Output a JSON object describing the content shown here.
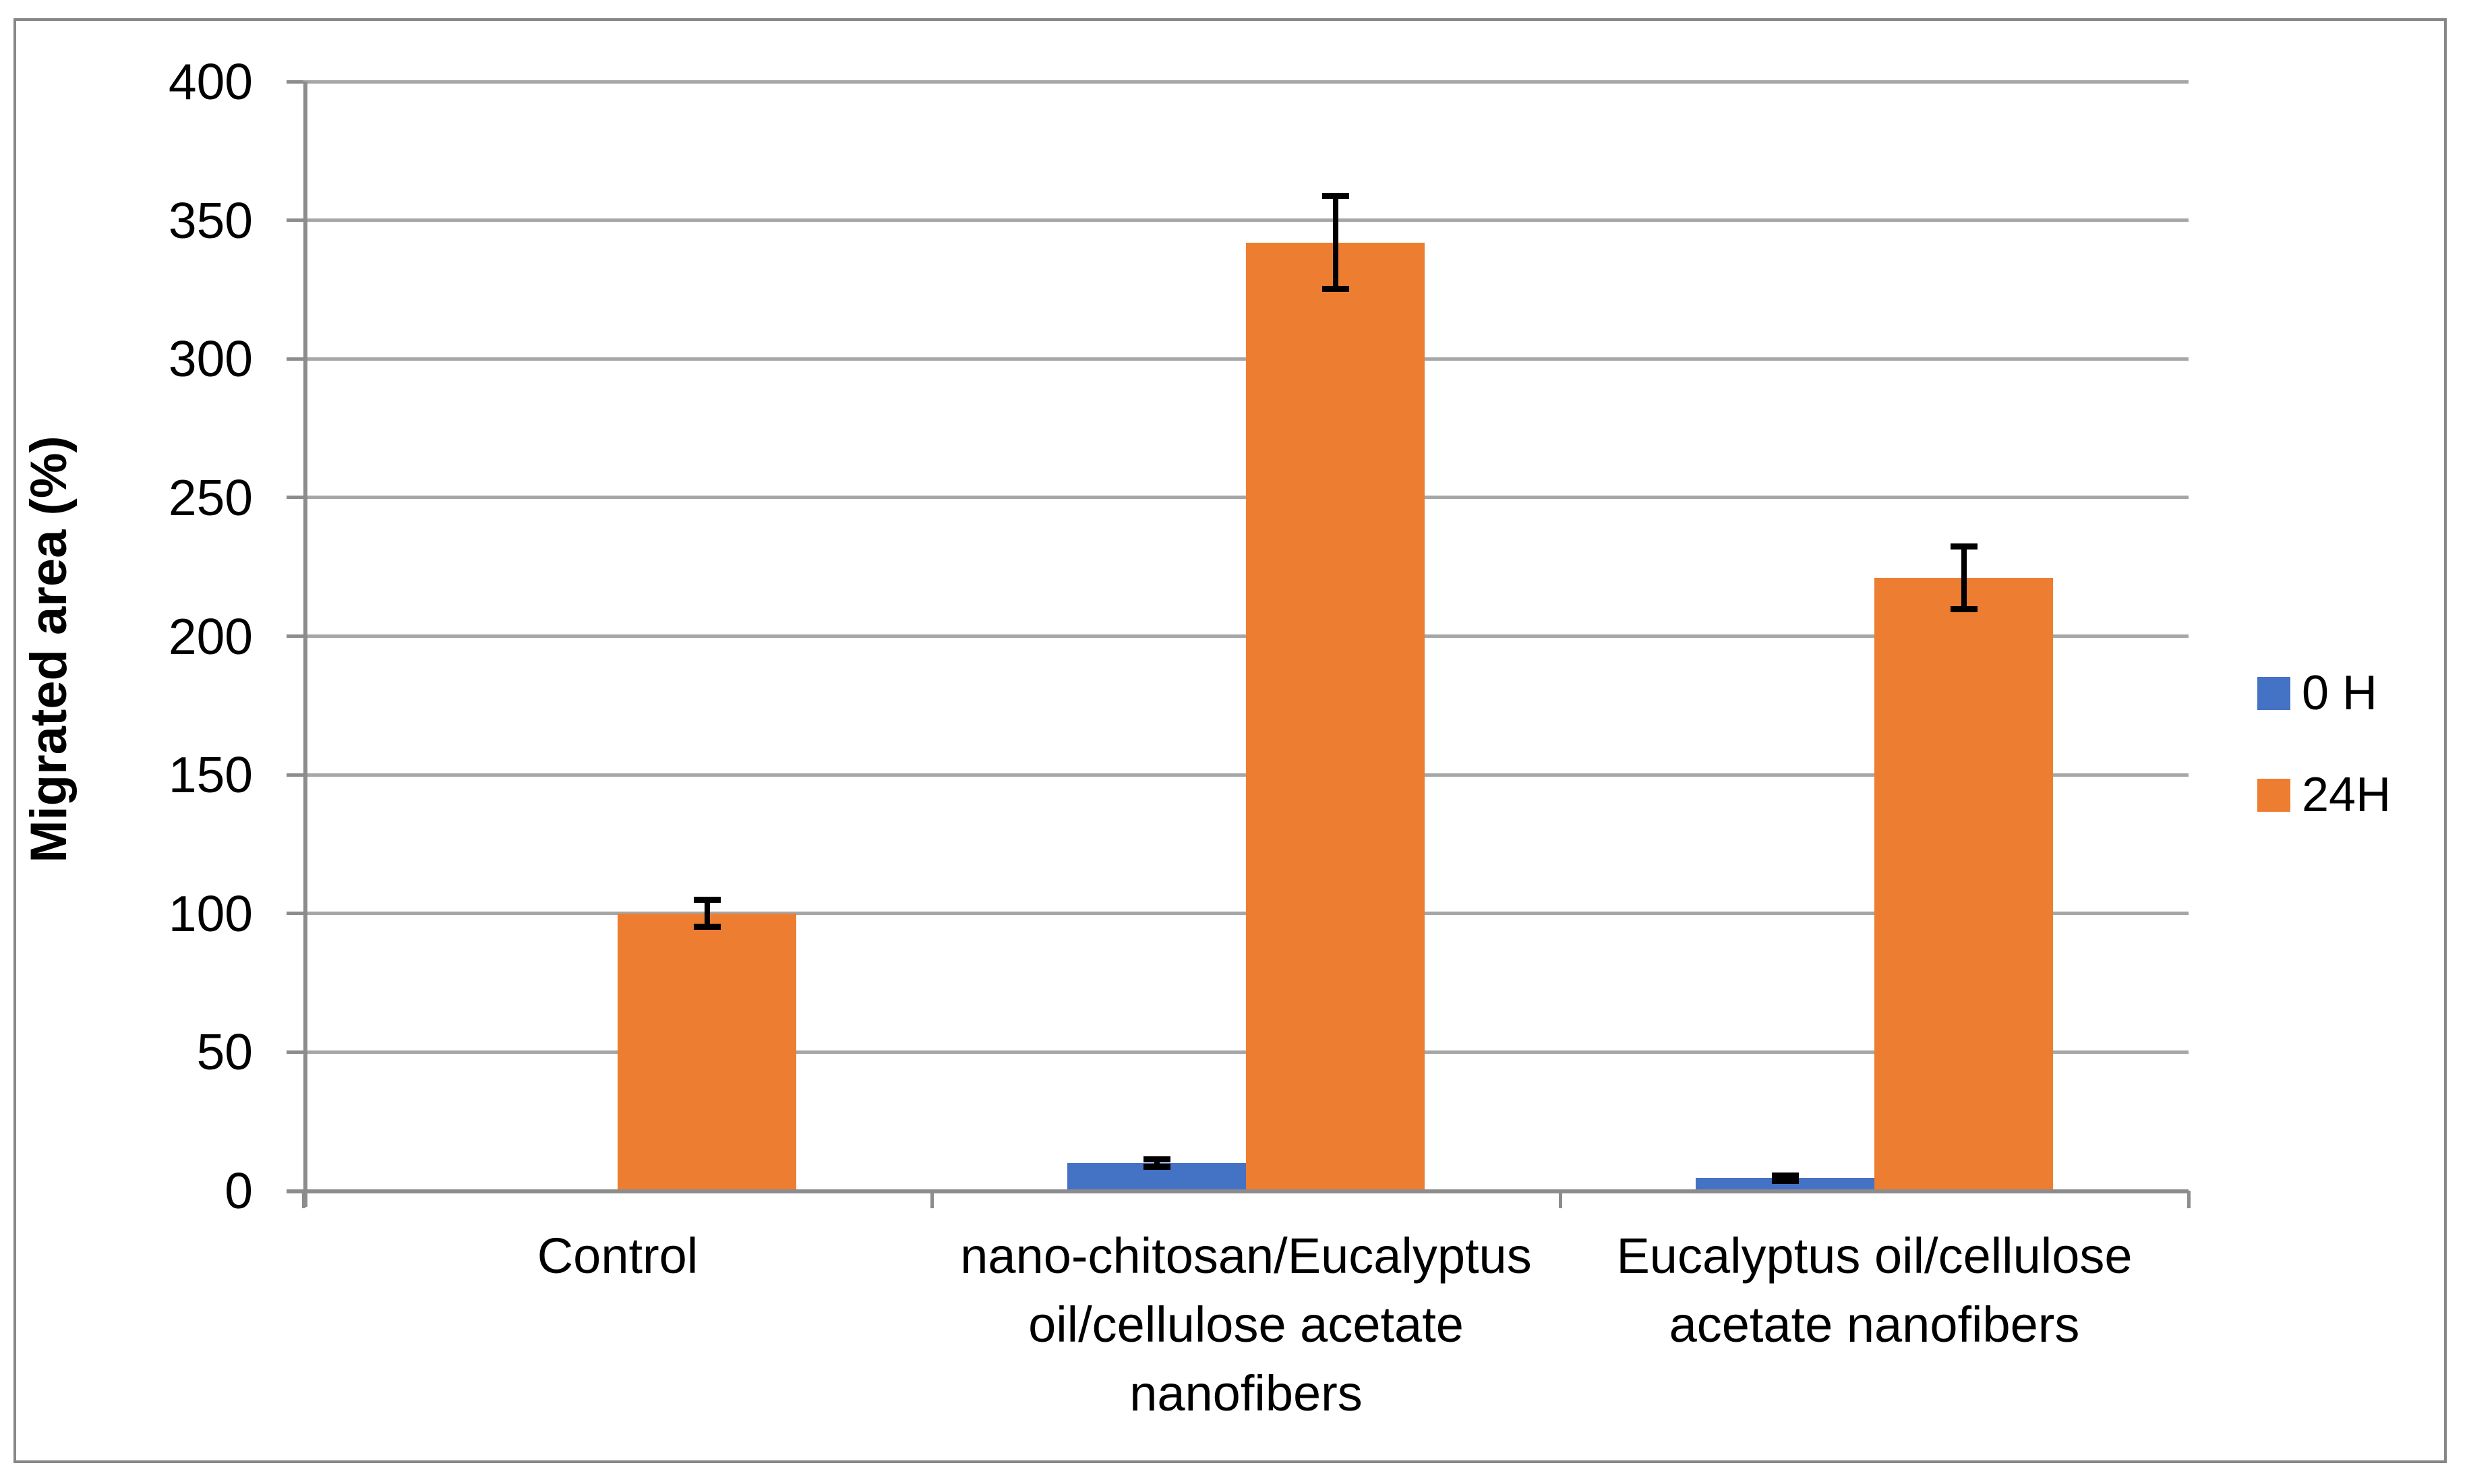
{
  "window": {
    "background": "#FFFFFF",
    "frame_color": "#878787"
  },
  "chart_data": {
    "type": "bar",
    "title": "",
    "ylabel": "Migrated area (%)",
    "xlabel": "",
    "ylim": [
      0,
      400
    ],
    "ytick_step": 50,
    "yticks": [
      0,
      50,
      100,
      150,
      200,
      250,
      300,
      350,
      400
    ],
    "grid": true,
    "legend_position": "right",
    "categories": [
      "Control",
      "nano-chitosan/Eucalyptus oil/cellulose acetate nanofibers",
      "Eucalyptus oil/cellulose acetate nanofibers"
    ],
    "category_label_lines": [
      [
        "Control"
      ],
      [
        "nano-chitosan/Eucalyptus",
        "oil/cellulose acetate",
        "nanofibers"
      ],
      [
        "Eucalyptus oil/cellulose",
        "acetate nanofibers"
      ]
    ],
    "series": [
      {
        "name": "0 H",
        "color": "#4472C4",
        "values": [
          0,
          10,
          4.5
        ],
        "errors": [
          0,
          1.5,
          1
        ]
      },
      {
        "name": "24H",
        "color": "#ED7D31",
        "values": [
          100,
          342,
          221
        ],
        "errors": [
          5,
          17,
          11.5
        ]
      }
    ],
    "colors": {
      "gridline": "#A6A6A6",
      "axis": "#8C8C8C",
      "error_bar": "#000000",
      "text": "#000000"
    }
  }
}
